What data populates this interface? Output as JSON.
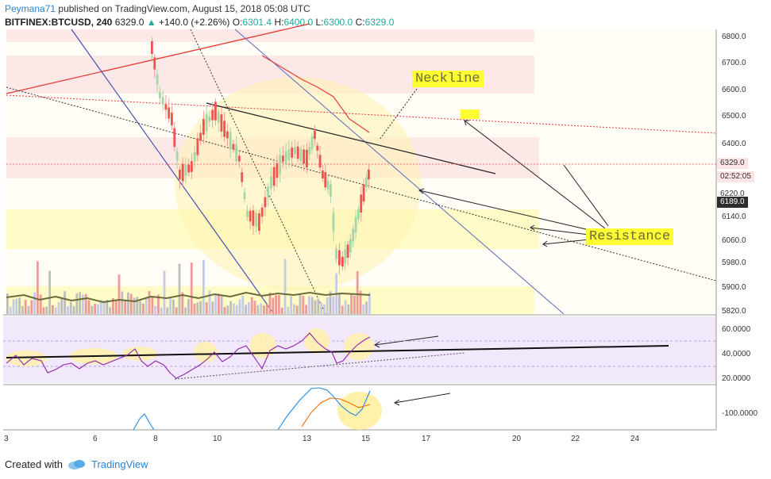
{
  "header": {
    "author": "Peymana71",
    "published": "published on TradingView.com, August 15, 2018 05:08 UTC",
    "symbol": "BITFINEX:BTCUSD, 240",
    "last": "6329.0",
    "change": "+140.0 (+2.26%)",
    "o_label": "O:",
    "o_value": "6301.4",
    "h_label": "H:",
    "h_value": "6400.0",
    "l_label": "L:",
    "l_value": "6300.0",
    "c_label": "C:",
    "c_value": "6329.0"
  },
  "price_axis": [
    "6800.0",
    "6700.0",
    "6600.0",
    "6500.0",
    "6400.0",
    "6140.0",
    "6060.0",
    "5980.0",
    "5900.0",
    "5820.0"
  ],
  "badges": {
    "last_price": "6329.0",
    "countdown": "02:52:05",
    "line_price": "6220.0",
    "level": "6189.0"
  },
  "rsi_axis": [
    "60.0000",
    "40.0000",
    "20.0000"
  ],
  "osc_axis": [
    "-100.0000"
  ],
  "time_axis": [
    "3",
    "6",
    "8",
    "10",
    "13",
    "15",
    "17",
    "20",
    "22",
    "24"
  ],
  "annotations": {
    "neckline": "Neckline",
    "resistance": "Resistance"
  },
  "footer": {
    "created_with": "Created with",
    "brand": "TradingView"
  },
  "colors": {
    "up": "#26a69a",
    "down": "#ef5350",
    "link": "#2a82d0",
    "highlight": "#ffff33"
  }
}
